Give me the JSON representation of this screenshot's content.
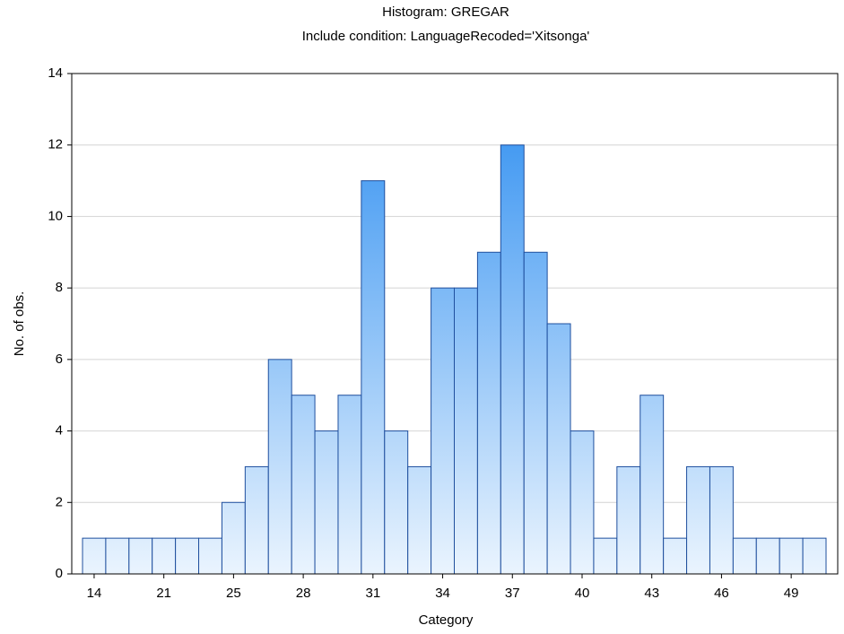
{
  "chart_data": {
    "type": "bar",
    "title": "Histogram: GREGAR",
    "subtitle": "Include condition: LanguageRecoded='Xitsonga'",
    "x_label": "Category",
    "y_label": "No. of obs.",
    "categories": [
      "14",
      null,
      null,
      "21",
      null,
      null,
      "25",
      null,
      null,
      "28",
      null,
      null,
      "31",
      null,
      null,
      "34",
      null,
      null,
      "37",
      null,
      null,
      "40",
      null,
      null,
      "43",
      null,
      null,
      "46",
      null,
      null,
      "49",
      null
    ],
    "values": [
      1,
      1,
      1,
      1,
      1,
      1,
      2,
      3,
      6,
      5,
      4,
      5,
      11,
      4,
      3,
      8,
      8,
      9,
      12,
      9,
      7,
      4,
      1,
      3,
      5,
      1,
      3,
      3,
      1,
      1,
      1,
      1
    ],
    "color": "#2a8cf0",
    "ylim": [
      0,
      14
    ],
    "yticks": [
      0,
      2,
      4,
      6,
      8,
      10,
      12,
      14
    ],
    "grid": true
  }
}
